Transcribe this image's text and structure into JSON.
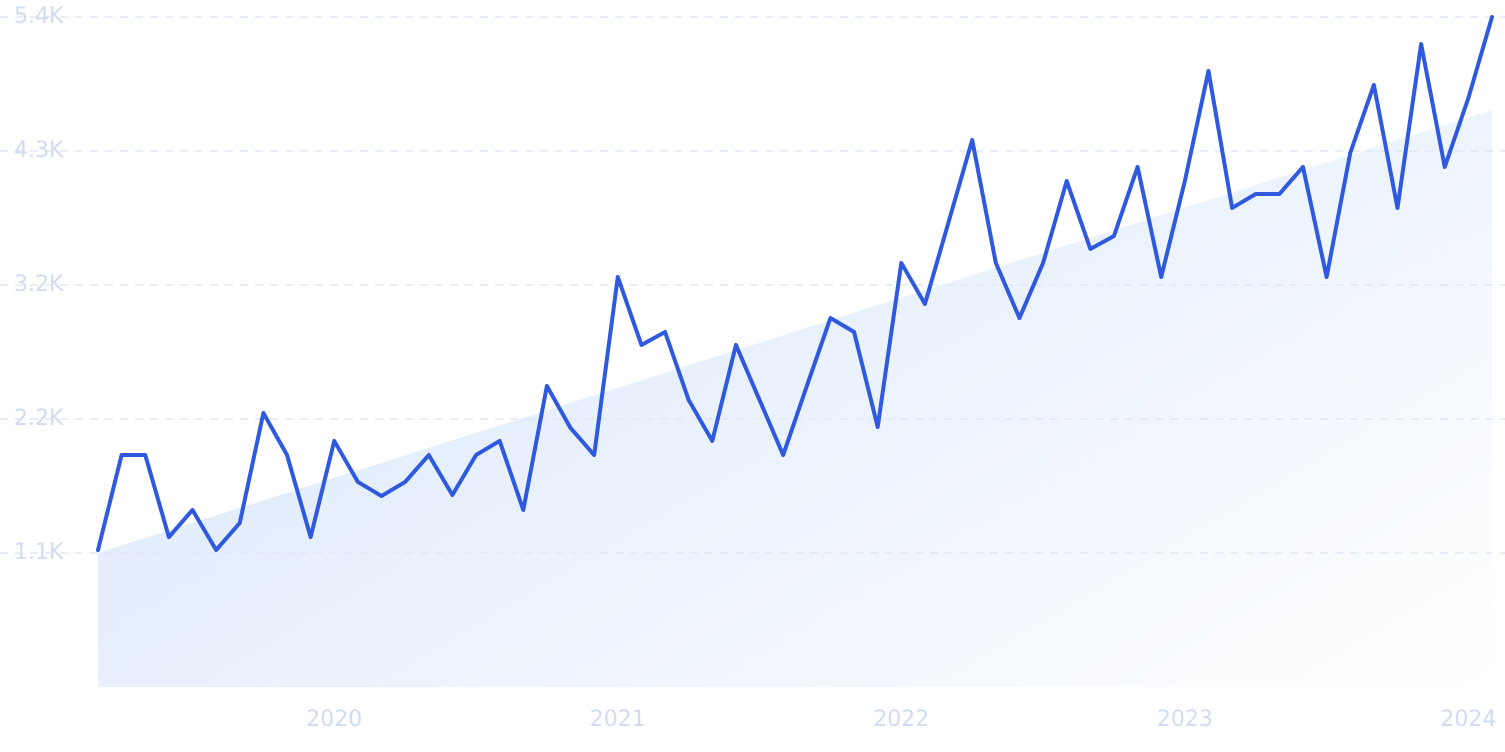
{
  "chart_data": {
    "type": "line",
    "categories": [
      null,
      null,
      null,
      null,
      null,
      null,
      null,
      null,
      null,
      null,
      "2020",
      null,
      null,
      null,
      null,
      null,
      null,
      null,
      null,
      null,
      null,
      null,
      "2021",
      null,
      null,
      null,
      null,
      null,
      null,
      null,
      null,
      null,
      null,
      null,
      "2022",
      null,
      null,
      null,
      null,
      null,
      null,
      null,
      null,
      null,
      null,
      null,
      "2023",
      null,
      null,
      null,
      null,
      null,
      null,
      null,
      null,
      null,
      null,
      null,
      "2024",
      null
    ],
    "values": [
      1099,
      1861,
      1861,
      1203,
      1420,
      1099,
      1316,
      2198,
      1861,
      1203,
      1974,
      1645,
      1532,
      1645,
      1861,
      1540,
      1861,
      1974,
      1420,
      2415,
      2078,
      1861,
      3289,
      2744,
      2848,
      2302,
      1974,
      2744,
      2302,
      1861,
      2415,
      2960,
      2848,
      2086,
      3402,
      3073,
      3730,
      4388,
      3402,
      2960,
      3402,
      4059,
      3514,
      3618,
      4172,
      3289,
      4059,
      4942,
      3843,
      3955,
      3955,
      4172,
      3289,
      4284,
      4830,
      3843,
      5158,
      4172,
      4725,
      5375
    ],
    "color": "#2f5ae0",
    "trend": [
      1075,
      4629
    ],
    "trend_color": "#dbe8fa",
    "ylim": [
      0,
      5375
    ],
    "yticks": [
      {
        "value": 1075,
        "label": "1.1K"
      },
      {
        "value": 2150,
        "label": "2.2K"
      },
      {
        "value": 3225,
        "label": "3.2K"
      },
      {
        "value": 4300,
        "label": "4.3K"
      },
      {
        "value": 5375,
        "label": "5.4K"
      }
    ],
    "grid": true
  }
}
